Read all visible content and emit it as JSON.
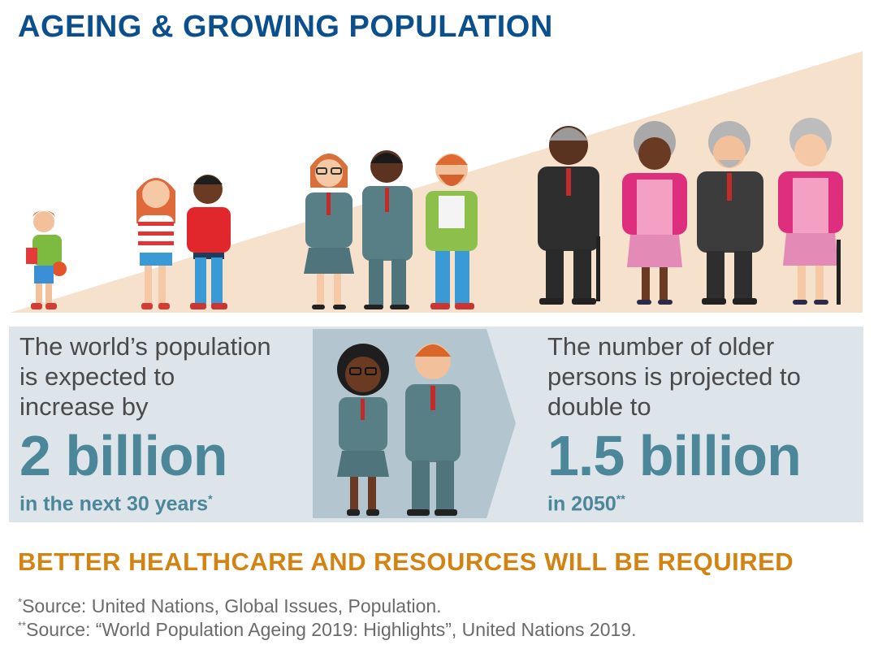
{
  "header": {
    "title": "AGEING & GROWING POPULATION"
  },
  "stats": {
    "left": {
      "lead": [
        "The world’s population",
        "is expected to",
        "increase by"
      ],
      "figure": "2 billion",
      "detail": "in the next 30 years",
      "marker": "*"
    },
    "right": {
      "lead": [
        "The number of older",
        "persons is projected to",
        "double to"
      ],
      "figure": "1.5 billion",
      "detail": "in 2050",
      "marker": "**"
    }
  },
  "footer": {
    "call_to_action": "BETTER HEALTHCARE AND RESOURCES WILL BE REQUIRED",
    "notes": [
      {
        "marker": "*",
        "text": "Source: United Nations, Global Issues, Population."
      },
      {
        "marker": "**",
        "text": "Source: “World Population Ageing 2019: Highlights”, United Nations 2019."
      }
    ]
  },
  "colors": {
    "title": "#0b4f8c",
    "accent_number": "#4c8799",
    "call_to_action": "#d38312",
    "panel": "#dde4ea",
    "ramp": "#f6e1cc",
    "arrow": "#b3c6d0"
  }
}
